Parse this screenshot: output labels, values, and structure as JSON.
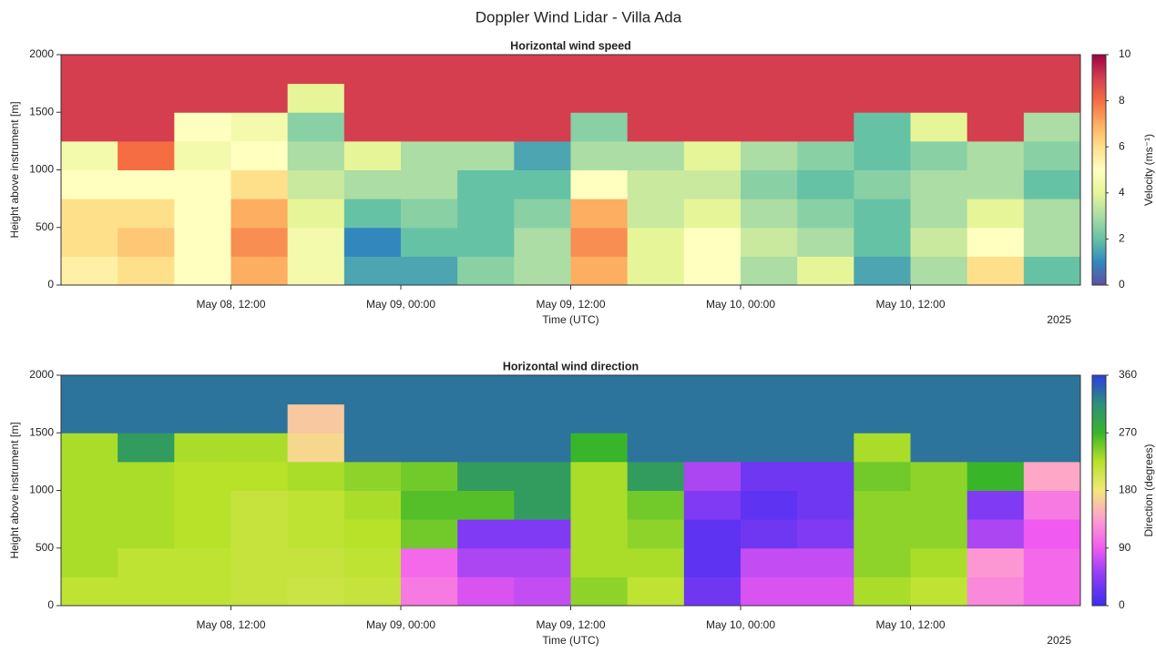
{
  "title": "Doppler Wind Lidar - Villa Ada",
  "chart_data": [
    {
      "type": "heatmap",
      "title": "Horizontal wind speed",
      "xlabel": "Time (UTC)",
      "ylabel": "Height above instrument [m]",
      "x_offset_label": "2025",
      "xlim": [
        "2025-05-08T00:00",
        "2025-05-11T00:00"
      ],
      "xticks": [
        {
          "value": "2025-05-08T12:00",
          "label": "May 08, 12:00"
        },
        {
          "value": "2025-05-09T00:00",
          "label": "May 09, 00:00"
        },
        {
          "value": "2025-05-09T12:00",
          "label": "May 09, 12:00"
        },
        {
          "value": "2025-05-10T00:00",
          "label": "May 10, 00:00"
        },
        {
          "value": "2025-05-10T12:00",
          "label": "May 10, 12:00"
        }
      ],
      "ylim": [
        0,
        2000
      ],
      "yticks": [
        0,
        500,
        1000,
        1500,
        2000
      ],
      "x": [
        "2025-05-08T02:00",
        "2025-05-08T06:00",
        "2025-05-08T10:00",
        "2025-05-08T14:00",
        "2025-05-08T18:00",
        "2025-05-08T22:00",
        "2025-05-09T02:00",
        "2025-05-09T06:00",
        "2025-05-09T10:00",
        "2025-05-09T14:00",
        "2025-05-09T18:00",
        "2025-05-09T22:00",
        "2025-05-10T02:00",
        "2025-05-10T06:00",
        "2025-05-10T10:00",
        "2025-05-10T14:00",
        "2025-05-10T18:00",
        "2025-05-10T22:00"
      ],
      "y": [
        125,
        375,
        625,
        875,
        1125,
        1375,
        1625,
        1875
      ],
      "z": [
        [
          5.5,
          6,
          5,
          7,
          4.5,
          1.5,
          1.5,
          2.5,
          3,
          7,
          4,
          5,
          3,
          4,
          1.5,
          3,
          6,
          2
        ],
        [
          6,
          6.5,
          5,
          7.5,
          4.5,
          1,
          2,
          2,
          3,
          7.5,
          4,
          5,
          3.5,
          3,
          2,
          3.5,
          5,
          3
        ],
        [
          6,
          6,
          5,
          7,
          4,
          2,
          2.5,
          2,
          2.5,
          7,
          3.5,
          4,
          3,
          2.5,
          2,
          3,
          4,
          3
        ],
        [
          5,
          5,
          5,
          6,
          3.5,
          3,
          3,
          2,
          2,
          5,
          3.5,
          3.5,
          2.5,
          2,
          2.5,
          3,
          3,
          2
        ],
        [
          4.5,
          8,
          4.5,
          5,
          3,
          4,
          3,
          3,
          1.5,
          3,
          3,
          4,
          3,
          2.5,
          2,
          2.5,
          3,
          2.5
        ],
        [
          9,
          9,
          5,
          4.5,
          2.5,
          9,
          9,
          9,
          9,
          2.5,
          9,
          9,
          9,
          9,
          2,
          4,
          9,
          3
        ],
        [
          9,
          9,
          9,
          9,
          4,
          9,
          9,
          9,
          9,
          9,
          9,
          9,
          9,
          9,
          9,
          9,
          9,
          9
        ],
        [
          9,
          9,
          9,
          9,
          9,
          9,
          9,
          9,
          9,
          9,
          9,
          9,
          9,
          9,
          9,
          9,
          9,
          9
        ]
      ],
      "colorbar": {
        "label": "Velocity (ms⁻¹)",
        "clim": [
          0,
          10
        ],
        "ticks": [
          0,
          2,
          4,
          6,
          8,
          10
        ],
        "colors": [
          "#5e4fa2",
          "#3288bd",
          "#66c2a5",
          "#abdda4",
          "#e6f598",
          "#ffffbf",
          "#fee08b",
          "#fdae61",
          "#f46d43",
          "#d53e4f",
          "#9e0142"
        ]
      }
    },
    {
      "type": "heatmap",
      "title": "Horizontal wind direction",
      "xlabel": "Time (UTC)",
      "ylabel": "Height above instrument [m]",
      "x_offset_label": "2025",
      "xlim": [
        "2025-05-08T00:00",
        "2025-05-11T00:00"
      ],
      "xticks": [
        {
          "value": "2025-05-08T12:00",
          "label": "May 08, 12:00"
        },
        {
          "value": "2025-05-09T00:00",
          "label": "May 09, 00:00"
        },
        {
          "value": "2025-05-09T12:00",
          "label": "May 09, 12:00"
        },
        {
          "value": "2025-05-10T00:00",
          "label": "May 10, 00:00"
        },
        {
          "value": "2025-05-10T12:00",
          "label": "May 10, 12:00"
        }
      ],
      "ylim": [
        0,
        2000
      ],
      "yticks": [
        0,
        500,
        1000,
        1500,
        2000
      ],
      "x": [
        "2025-05-08T02:00",
        "2025-05-08T06:00",
        "2025-05-08T10:00",
        "2025-05-08T14:00",
        "2025-05-08T18:00",
        "2025-05-08T22:00",
        "2025-05-09T02:00",
        "2025-05-09T06:00",
        "2025-05-09T10:00",
        "2025-05-09T14:00",
        "2025-05-09T18:00",
        "2025-05-09T22:00",
        "2025-05-10T02:00",
        "2025-05-10T06:00",
        "2025-05-10T10:00",
        "2025-05-10T14:00",
        "2025-05-10T18:00",
        "2025-05-10T22:00"
      ],
      "y": [
        125,
        375,
        625,
        875,
        1125,
        1375,
        1625,
        1875
      ],
      "z": [
        [
          220,
          220,
          220,
          215,
          210,
          215,
          110,
          80,
          70,
          240,
          220,
          30,
          80,
          80,
          230,
          220,
          120,
          100
        ],
        [
          230,
          220,
          220,
          215,
          215,
          220,
          100,
          60,
          60,
          230,
          230,
          20,
          70,
          70,
          240,
          230,
          130,
          100
        ],
        [
          230,
          230,
          225,
          215,
          220,
          225,
          250,
          40,
          40,
          230,
          240,
          20,
          30,
          40,
          240,
          240,
          60,
          90
        ],
        [
          230,
          230,
          225,
          215,
          220,
          230,
          260,
          260,
          300,
          230,
          250,
          40,
          20,
          30,
          240,
          240,
          40,
          110
        ],
        [
          230,
          230,
          225,
          225,
          230,
          240,
          250,
          300,
          300,
          230,
          300,
          60,
          30,
          30,
          250,
          240,
          270,
          140
        ],
        [
          230,
          300,
          230,
          230,
          170,
          330,
          330,
          330,
          330,
          270,
          330,
          330,
          330,
          330,
          230,
          330,
          330,
          330
        ],
        [
          330,
          330,
          330,
          330,
          160,
          330,
          330,
          330,
          330,
          330,
          330,
          330,
          330,
          330,
          330,
          330,
          330,
          330
        ],
        [
          330,
          330,
          330,
          330,
          330,
          330,
          330,
          330,
          330,
          330,
          330,
          330,
          330,
          330,
          330,
          330,
          330,
          330
        ]
      ],
      "colorbar": {
        "label": "Direction (degrees)",
        "clim": [
          0,
          360
        ],
        "ticks": [
          0,
          90,
          180,
          270,
          360
        ],
        "colors": [
          "#3b2cf0",
          "#8a3cf5",
          "#f05af0",
          "#ff9fd0",
          "#f2e87a",
          "#b8e22a",
          "#39b52a",
          "#2f8f7a",
          "#2a3fe0"
        ]
      }
    }
  ]
}
